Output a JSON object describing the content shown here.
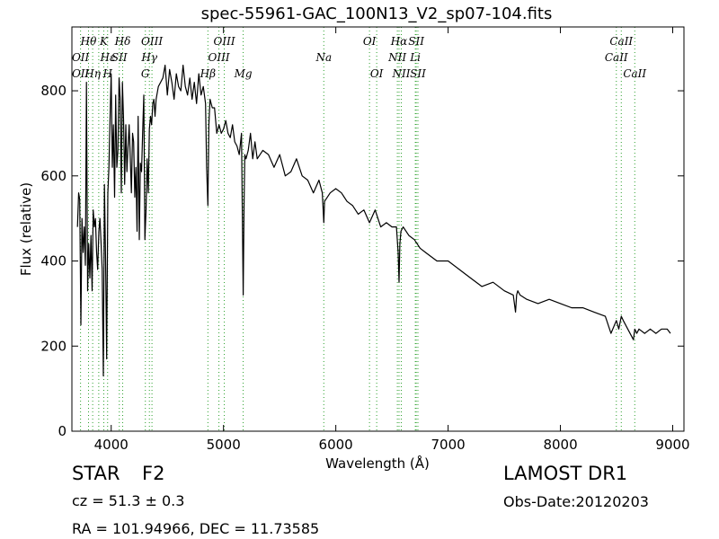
{
  "chart_data": {
    "type": "line",
    "title": "spec-55961-GAC_100N13_V2_sp07-104.fits",
    "xlabel": "Wavelength (Å)",
    "ylabel": "Flux (relative)",
    "xlim": [
      3650,
      9100
    ],
    "ylim": [
      0,
      950
    ],
    "x_ticks": [
      4000,
      5000,
      6000,
      7000,
      8000,
      9000
    ],
    "y_ticks": [
      0,
      200,
      400,
      600,
      800
    ],
    "grid": false,
    "line_color": "#000000",
    "marker_color": "#2ca02c",
    "series": [
      {
        "x": [
          3700,
          3710,
          3720,
          3730,
          3740,
          3750,
          3760,
          3770,
          3780,
          3790,
          3800,
          3810,
          3820,
          3830,
          3840,
          3850,
          3860,
          3870,
          3880,
          3890,
          3900,
          3910,
          3920,
          3930,
          3940,
          3950,
          3960,
          3970,
          3980,
          3990,
          4000,
          4010,
          4020,
          4030,
          4040,
          4050,
          4060,
          4070,
          4080,
          4090,
          4100,
          4110,
          4120,
          4130,
          4140,
          4150,
          4160,
          4170,
          4180,
          4190,
          4200,
          4210,
          4220,
          4230,
          4240,
          4250,
          4260,
          4270,
          4280,
          4290,
          4300,
          4310,
          4320,
          4330,
          4340,
          4350,
          4360,
          4370,
          4380,
          4390,
          4400,
          4420,
          4440,
          4460,
          4480,
          4500,
          4520,
          4540,
          4560,
          4580,
          4600,
          4620,
          4640,
          4660,
          4680,
          4700,
          4720,
          4740,
          4760,
          4780,
          4800,
          4820,
          4840,
          4850,
          4861,
          4870,
          4880,
          4900,
          4920,
          4940,
          4960,
          4980,
          5000,
          5020,
          5040,
          5060,
          5080,
          5100,
          5120,
          5140,
          5160,
          5167,
          5175,
          5183,
          5190,
          5200,
          5220,
          5240,
          5260,
          5280,
          5300,
          5350,
          5400,
          5450,
          5500,
          5550,
          5600,
          5650,
          5700,
          5750,
          5800,
          5850,
          5880,
          5893,
          5900,
          5950,
          6000,
          6050,
          6100,
          6150,
          6200,
          6250,
          6300,
          6350,
          6400,
          6450,
          6500,
          6540,
          6555,
          6563,
          6570,
          6580,
          6600,
          6650,
          6700,
          6750,
          6800,
          6900,
          7000,
          7100,
          7200,
          7300,
          7400,
          7500,
          7580,
          7600,
          7610,
          7620,
          7640,
          7700,
          7800,
          7900,
          8000,
          8100,
          8200,
          8300,
          8400,
          8450,
          8498,
          8520,
          8542,
          8560,
          8600,
          8650,
          8662,
          8680,
          8700,
          8750,
          8800,
          8850,
          8900,
          8950,
          8980
        ],
        "y": [
          480,
          560,
          545,
          250,
          500,
          420,
          480,
          390,
          820,
          330,
          440,
          360,
          460,
          330,
          520,
          480,
          500,
          420,
          380,
          470,
          500,
          440,
          380,
          130,
          580,
          400,
          170,
          560,
          620,
          740,
          840,
          620,
          720,
          550,
          790,
          620,
          660,
          830,
          780,
          560,
          820,
          730,
          580,
          720,
          610,
          670,
          720,
          640,
          560,
          700,
          680,
          550,
          620,
          470,
          740,
          450,
          630,
          610,
          700,
          790,
          450,
          520,
          640,
          560,
          710,
          740,
          720,
          770,
          780,
          740,
          780,
          810,
          820,
          830,
          860,
          790,
          850,
          820,
          780,
          840,
          810,
          800,
          860,
          810,
          790,
          830,
          780,
          820,
          770,
          840,
          790,
          810,
          770,
          620,
          530,
          720,
          780,
          760,
          760,
          700,
          720,
          700,
          710,
          730,
          700,
          690,
          720,
          680,
          670,
          650,
          700,
          520,
          320,
          540,
          650,
          640,
          660,
          700,
          640,
          680,
          640,
          660,
          650,
          620,
          650,
          600,
          610,
          640,
          600,
          590,
          560,
          590,
          560,
          490,
          540,
          560,
          570,
          560,
          540,
          530,
          510,
          520,
          490,
          520,
          480,
          490,
          480,
          480,
          420,
          350,
          440,
          470,
          480,
          460,
          450,
          430,
          420,
          400,
          400,
          380,
          360,
          340,
          350,
          330,
          320,
          280,
          320,
          330,
          320,
          310,
          300,
          310,
          300,
          290,
          290,
          280,
          270,
          230,
          260,
          240,
          270,
          260,
          240,
          215,
          240,
          230,
          240,
          230,
          240,
          230,
          240,
          240,
          230
        ]
      }
    ]
  },
  "spectral_lines": {
    "top_row1": [
      {
        "label": "Hθ",
        "wl": 3798
      },
      {
        "label": "K",
        "wl": 3934
      },
      {
        "label": "Hδ",
        "wl": 4102
      },
      {
        "label": "OIII",
        "wl": 4363
      },
      {
        "label": "OIII",
        "wl": 5007
      },
      {
        "label": "OI",
        "wl": 6300
      },
      {
        "label": "Hα",
        "wl": 6563
      },
      {
        "label": "SII",
        "wl": 6716
      },
      {
        "label": "CaII",
        "wl": 8542
      }
    ],
    "top_row2": [
      {
        "label": "OII",
        "wl": 3727
      },
      {
        "label": "Hε",
        "wl": 3970
      },
      {
        "label": "SII",
        "wl": 4072
      },
      {
        "label": "Hγ",
        "wl": 4340
      },
      {
        "label": "OIII",
        "wl": 4959
      },
      {
        "label": "Na",
        "wl": 5893
      },
      {
        "label": "NII",
        "wl": 6548
      },
      {
        "label": "Li",
        "wl": 6708
      },
      {
        "label": "CaII",
        "wl": 8498
      }
    ],
    "top_row3": [
      {
        "label": "OII",
        "wl": 3727
      },
      {
        "label": "Hη",
        "wl": 3835
      },
      {
        "label": "H",
        "wl": 3968
      },
      {
        "label": "G",
        "wl": 4304
      },
      {
        "label": "Hβ",
        "wl": 4861
      },
      {
        "label": "Mg",
        "wl": 5175
      },
      {
        "label": "OI",
        "wl": 6364
      },
      {
        "label": "NII",
        "wl": 6583
      },
      {
        "label": "SII",
        "wl": 6731
      },
      {
        "label": "CaII",
        "wl": 8662
      }
    ],
    "marker_wls": [
      3727,
      3798,
      3835,
      3889,
      3934,
      3968,
      4072,
      4102,
      4304,
      4340,
      4363,
      4861,
      4959,
      5007,
      5175,
      5893,
      6300,
      6364,
      6548,
      6563,
      6583,
      6708,
      6716,
      6731,
      8498,
      8542,
      8662
    ]
  },
  "footer": {
    "object_class": "STAR",
    "subclass": "F2",
    "cz": "cz = 51.3  ± 0.3",
    "survey": "LAMOST DR1",
    "obs_date": "Obs-Date:20120203",
    "coords": "RA = 101.94966, DEC = 11.73585"
  }
}
